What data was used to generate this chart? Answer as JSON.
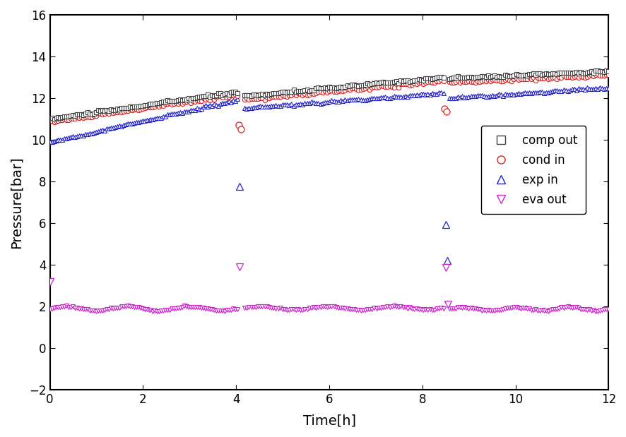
{
  "title": "",
  "xlabel": "Time[h]",
  "ylabel": "Pressure[bar]",
  "xlim": [
    0,
    12
  ],
  "ylim": [
    -2,
    16
  ],
  "yticks": [
    -2,
    0,
    2,
    4,
    6,
    8,
    10,
    12,
    14,
    16
  ],
  "xticks": [
    0,
    2,
    4,
    6,
    8,
    10,
    12
  ],
  "comp_out_color": "#444444",
  "cond_in_color": "#dd2222",
  "exp_in_color": "#2222cc",
  "eva_out_color": "#cc22cc",
  "figwidth": 8.86,
  "figheight": 6.19,
  "dpi": 100
}
